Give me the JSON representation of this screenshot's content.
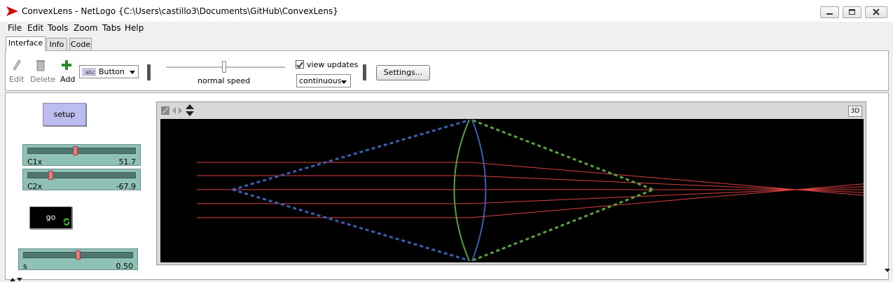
{
  "window": {
    "title": "ConvexLens - NetLogo {C:\\Users\\castillo3\\Documents\\GitHub\\ConvexLens}"
  },
  "menu": [
    "File",
    "Edit",
    "Tools",
    "Zoom",
    "Tabs",
    "Help"
  ],
  "tabs": [
    {
      "label": "Interface",
      "active": true
    },
    {
      "label": "Info",
      "active": false
    },
    {
      "label": "Code",
      "active": false
    }
  ],
  "toolbar": {
    "edit_label": "Edit",
    "delete_label": "Delete",
    "add_label": "Add",
    "widget_type": "Button",
    "widget_icon_text": "abc",
    "speed_label": "normal speed",
    "view_updates_label": "view updates",
    "view_updates_checked": true,
    "update_mode": "continuous",
    "settings_label": "Settings..."
  },
  "widgets": {
    "setup_label": "setup",
    "go_label": "go",
    "sliders": [
      {
        "name": "C1x",
        "value": "51.7",
        "fraction": 0.44
      },
      {
        "name": "C2x",
        "value": "-67.9",
        "fraction": 0.2
      },
      {
        "name": "s",
        "value": "0.50",
        "fraction": 0.5
      }
    ]
  },
  "view": {
    "button_3d": "3D",
    "background": "#000000",
    "colors": {
      "ray": "#d84040",
      "left_cone": "#3a5fb0",
      "right_cone": "#5aa040",
      "lens_left": "#5aa040",
      "lens_right": "#3a5fb0"
    }
  }
}
